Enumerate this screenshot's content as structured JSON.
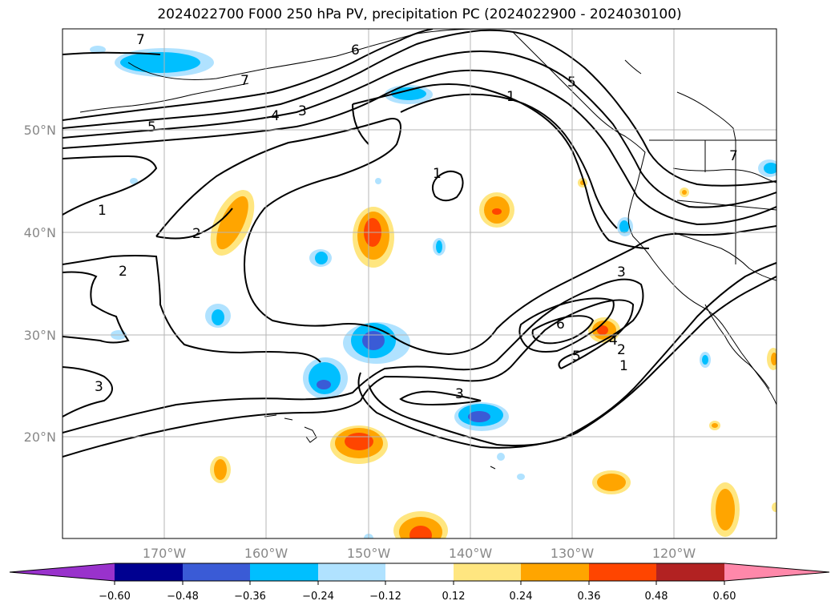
{
  "title": "2024022700 F000 250 hPa PV, precipitation PC (2024022900 - 2024030100)",
  "lat_labels": [
    "50°N",
    "40°N",
    "30°N",
    "20°N"
  ],
  "lon_labels": [
    "170°W",
    "160°W",
    "150°W",
    "140°W",
    "130°W",
    "120°W"
  ],
  "colorbar": {
    "colors": [
      "#9932cc",
      "#000090",
      "#3a5bd6",
      "#00bfff",
      "#b0e2ff",
      "#ffffff",
      "#ffe680",
      "#ffa500",
      "#ff4500",
      "#b22222",
      "#ff88aa"
    ],
    "tick_labels": [
      "−0.60",
      "−0.48",
      "−0.36",
      "−0.24",
      "−0.12",
      "0.12",
      "0.24",
      "0.36",
      "0.48",
      "0.60"
    ]
  },
  "contour_labels": [
    "1",
    "1",
    "1",
    "1",
    "2",
    "2",
    "2",
    "3",
    "3",
    "3",
    "3",
    "4",
    "4",
    "5",
    "5",
    "5",
    "6",
    "6",
    "7",
    "7",
    "7"
  ]
}
